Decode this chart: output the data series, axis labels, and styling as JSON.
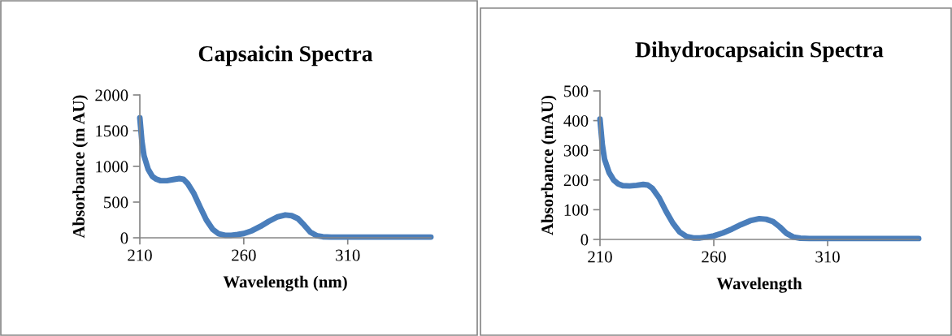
{
  "chart_data": [
    {
      "type": "line",
      "title": "Capsaicin Spectra",
      "xlabel": "Wavelength (nm)",
      "ylabel": "Absorbance (m AU)",
      "xlim": [
        210,
        350
      ],
      "xticks": [
        210,
        260,
        310
      ],
      "ylim": [
        0,
        2000
      ],
      "yticks": [
        0,
        500,
        1000,
        1500,
        2000
      ],
      "grid": false,
      "legend": false,
      "marker": "none",
      "line_style": "solid",
      "series": [
        {
          "color": "#4a7ebb",
          "x": [
            210,
            211,
            212,
            214,
            216,
            218,
            220,
            223,
            226,
            229,
            231,
            233,
            236,
            239,
            242,
            245,
            248,
            251,
            254,
            257,
            260,
            264,
            268,
            272,
            276,
            280,
            283,
            286,
            289,
            292,
            295,
            298,
            302,
            310,
            320,
            330,
            340,
            350
          ],
          "values": [
            1680,
            1350,
            1150,
            960,
            860,
            820,
            800,
            800,
            815,
            830,
            820,
            760,
            620,
            430,
            250,
            120,
            55,
            35,
            35,
            45,
            60,
            100,
            160,
            230,
            290,
            320,
            310,
            270,
            180,
            80,
            30,
            15,
            10,
            10,
            10,
            10,
            10,
            10
          ]
        }
      ]
    },
    {
      "type": "line",
      "title": "Dihydrocapsaicin Spectra",
      "xlabel": "Wavelength",
      "ylabel": "Absorbance (mAU)",
      "xlim": [
        210,
        350
      ],
      "xticks": [
        210,
        260,
        310
      ],
      "ylim": [
        0,
        500
      ],
      "yticks": [
        0,
        100,
        200,
        300,
        400,
        500
      ],
      "grid": false,
      "legend": false,
      "marker": "none",
      "line_style": "solid",
      "series": [
        {
          "color": "#4a7ebb",
          "x": [
            210,
            211,
            212,
            214,
            216,
            218,
            220,
            223,
            226,
            229,
            231,
            233,
            236,
            239,
            242,
            245,
            248,
            251,
            254,
            257,
            260,
            264,
            268,
            272,
            276,
            280,
            283,
            286,
            289,
            292,
            295,
            298,
            302,
            310,
            320,
            330,
            340,
            350
          ],
          "values": [
            405,
            320,
            270,
            225,
            200,
            187,
            181,
            180,
            182,
            185,
            183,
            172,
            140,
            95,
            55,
            25,
            10,
            5,
            5,
            8,
            12,
            22,
            35,
            50,
            63,
            70,
            68,
            60,
            42,
            20,
            8,
            4,
            3,
            3,
            3,
            3,
            3,
            3
          ]
        }
      ]
    }
  ]
}
